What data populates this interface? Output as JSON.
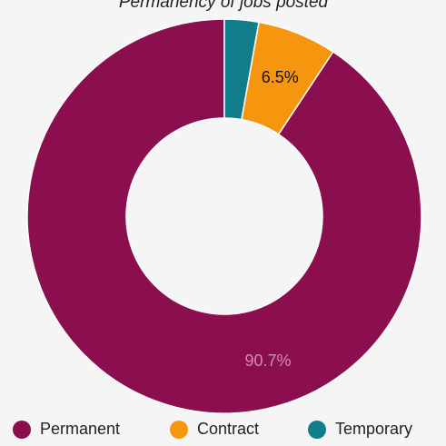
{
  "chart_data": {
    "type": "pie",
    "title": "Permanency of jobs posted",
    "donut": true,
    "series": [
      {
        "name": "Permanent",
        "value": 90.7,
        "label": "90.7%",
        "color": "#8b0f4e",
        "label_color": "#d58ab0"
      },
      {
        "name": "Contract",
        "value": 6.5,
        "label": "6.5%",
        "color": "#f6950e",
        "label_color": "#111111"
      },
      {
        "name": "Temporary",
        "value": 2.8,
        "label": "",
        "color": "#0f7d8a",
        "label_color": "#ffffff"
      }
    ],
    "legend_position": "bottom"
  },
  "page": {
    "background": "#f5f5f5"
  }
}
